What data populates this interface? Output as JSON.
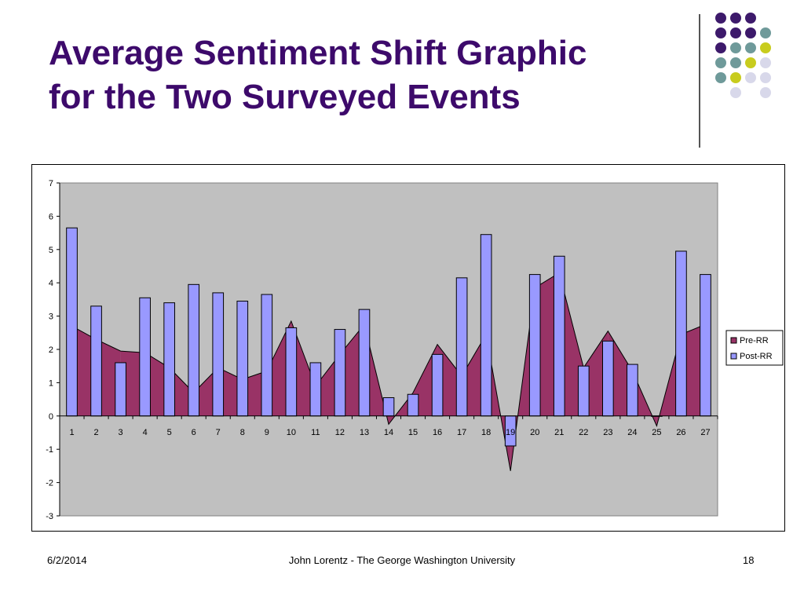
{
  "slide": {
    "title_lines": [
      "Average Sentiment Shift Graphic",
      "for the Two Surveyed Events"
    ],
    "date": "6/2/2014",
    "author": "John Lorentz - The George Washington University",
    "page_number": "18"
  },
  "decor": {
    "dot_colors": [
      "#3d1a6b",
      "#6f9a9a",
      "#c8cc1e",
      "#d8d8ea"
    ]
  },
  "chart_data": {
    "type": "bar",
    "categories": [
      "1",
      "2",
      "3",
      "4",
      "5",
      "6",
      "7",
      "8",
      "9",
      "10",
      "11",
      "12",
      "13",
      "14",
      "15",
      "16",
      "17",
      "18",
      "19",
      "20",
      "21",
      "22",
      "23",
      "24",
      "25",
      "26",
      "27"
    ],
    "ylim": [
      -3,
      7
    ],
    "yticks": [
      7,
      6,
      5,
      4,
      3,
      2,
      1,
      0,
      -1,
      -2,
      -3
    ],
    "grid": false,
    "legend_position": "right",
    "plot_background": "#c0c0c0",
    "series": [
      {
        "name": "Pre-RR",
        "type": "area",
        "color": "#993366",
        "values": [
          2.7,
          2.3,
          1.95,
          1.9,
          1.45,
          0.7,
          1.45,
          1.1,
          1.35,
          2.85,
          0.9,
          1.85,
          2.75,
          -0.25,
          0.7,
          2.15,
          1.2,
          2.45,
          -1.65,
          3.85,
          4.3,
          1.45,
          2.55,
          1.35,
          -0.3,
          2.45,
          2.75
        ]
      },
      {
        "name": "Post-RR",
        "type": "bar",
        "color": "#9999ff",
        "values": [
          5.65,
          3.3,
          1.6,
          3.55,
          3.4,
          3.95,
          3.7,
          3.45,
          3.65,
          2.65,
          1.6,
          2.6,
          3.2,
          0.55,
          0.65,
          1.85,
          4.15,
          5.45,
          -0.9,
          4.25,
          4.8,
          1.5,
          2.25,
          1.55,
          0.0,
          4.95,
          4.25
        ]
      }
    ]
  }
}
